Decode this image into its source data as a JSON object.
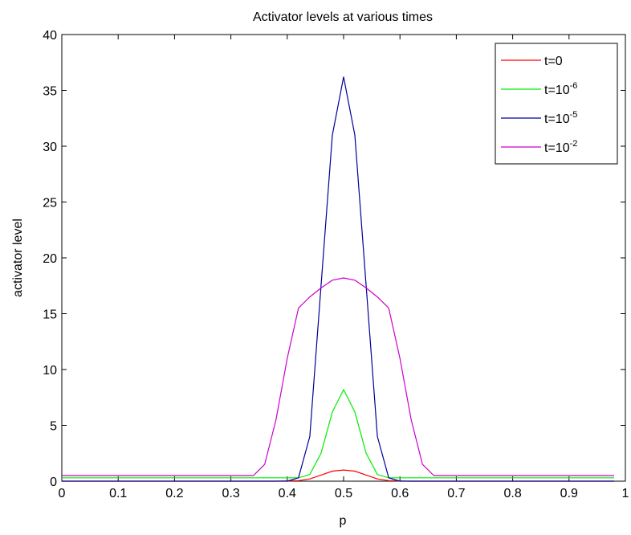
{
  "chart_data": {
    "type": "line",
    "title": "Activator levels at various times",
    "xlabel": "p",
    "ylabel": "activator level",
    "xlim": [
      0,
      1
    ],
    "ylim": [
      0,
      40
    ],
    "xticks": [
      0,
      0.1,
      0.2,
      0.3,
      0.4,
      0.5,
      0.6,
      0.7,
      0.8,
      0.9,
      1
    ],
    "yticks": [
      0,
      5,
      10,
      15,
      20,
      25,
      30,
      35,
      40
    ],
    "xtick_labels": [
      "0",
      "0.1",
      "0.2",
      "0.3",
      "0.4",
      "0.5",
      "0.6",
      "0.7",
      "0.8",
      "0.9",
      "1"
    ],
    "ytick_labels": [
      "0",
      "5",
      "10",
      "15",
      "20",
      "25",
      "30",
      "35",
      "40"
    ],
    "grid": false,
    "legend_position": "top-right",
    "legend": [
      {
        "base": "t=0",
        "sup": ""
      },
      {
        "base": "t=10",
        "sup": "-6"
      },
      {
        "base": "t=10",
        "sup": "-5"
      },
      {
        "base": "t=10",
        "sup": "-2"
      }
    ],
    "series": [
      {
        "color": "#ff0000",
        "x": [
          0,
          0.1,
          0.2,
          0.3,
          0.38,
          0.42,
          0.44,
          0.46,
          0.48,
          0.5,
          0.52,
          0.54,
          0.56,
          0.58,
          0.62,
          0.7,
          0.8,
          0.9,
          0.98
        ],
        "y": [
          0,
          0,
          0,
          0,
          0,
          0.05,
          0.2,
          0.55,
          0.9,
          1.0,
          0.9,
          0.55,
          0.2,
          0.05,
          0,
          0,
          0,
          0,
          0
        ]
      },
      {
        "color": "#00ee00",
        "x": [
          0,
          0.1,
          0.2,
          0.3,
          0.4,
          0.42,
          0.44,
          0.46,
          0.48,
          0.5,
          0.52,
          0.54,
          0.56,
          0.58,
          0.6,
          0.7,
          0.8,
          0.9,
          0.98
        ],
        "y": [
          0.3,
          0.3,
          0.3,
          0.3,
          0.3,
          0.3,
          0.6,
          2.5,
          6.2,
          8.2,
          6.2,
          2.5,
          0.6,
          0.3,
          0.3,
          0.3,
          0.3,
          0.3,
          0.3
        ]
      },
      {
        "color": "#000099",
        "x": [
          0,
          0.1,
          0.2,
          0.3,
          0.4,
          0.42,
          0.44,
          0.46,
          0.48,
          0.5,
          0.52,
          0.54,
          0.56,
          0.58,
          0.6,
          0.7,
          0.8,
          0.9,
          0.98
        ],
        "y": [
          0,
          0,
          0,
          0,
          0,
          0.3,
          4.0,
          17.5,
          31.0,
          36.2,
          31.0,
          17.5,
          4.0,
          0.3,
          0,
          0,
          0,
          0,
          0
        ]
      },
      {
        "color": "#cc00cc",
        "x": [
          0,
          0.1,
          0.2,
          0.3,
          0.34,
          0.36,
          0.38,
          0.4,
          0.42,
          0.44,
          0.46,
          0.48,
          0.5,
          0.52,
          0.54,
          0.56,
          0.58,
          0.6,
          0.62,
          0.64,
          0.66,
          0.7,
          0.8,
          0.9,
          0.98
        ],
        "y": [
          0.5,
          0.5,
          0.5,
          0.5,
          0.5,
          1.5,
          5.5,
          11.0,
          15.5,
          16.5,
          17.3,
          18.0,
          18.2,
          18.0,
          17.3,
          16.5,
          15.5,
          11.0,
          5.5,
          1.5,
          0.5,
          0.5,
          0.5,
          0.5,
          0.5
        ]
      }
    ]
  }
}
